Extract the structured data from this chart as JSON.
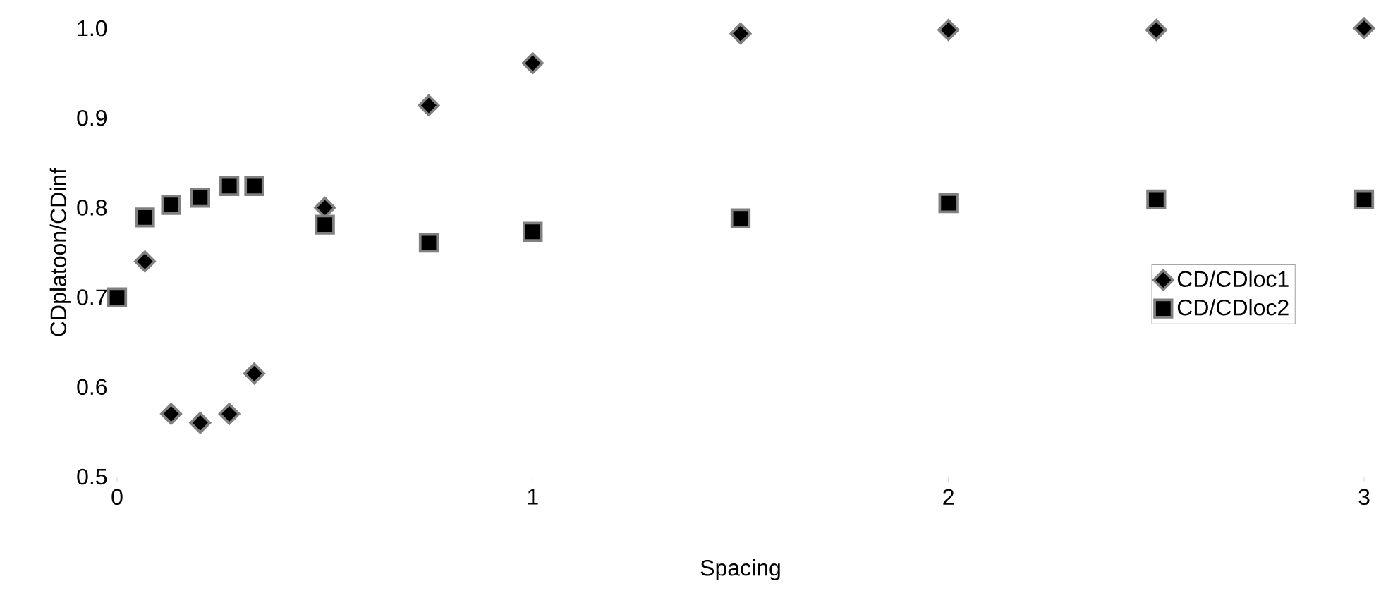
{
  "chart_data": {
    "type": "scatter",
    "xlabel": "Spacing",
    "ylabel": "CDplatoon/CDinf",
    "xlim": [
      0,
      3
    ],
    "ylim": [
      0.5,
      1.0
    ],
    "xticks": [
      0,
      1,
      2,
      3
    ],
    "yticks": [
      {
        "value": 0.5,
        "label": "0.5"
      },
      {
        "value": 0.6,
        "label": "0.6"
      },
      {
        "value": 0.7,
        "label": "0.7"
      },
      {
        "value": 0.8,
        "label": "0.8"
      },
      {
        "value": 0.9,
        "label": "0.9"
      },
      {
        "value": 1.0,
        "label": "1.0"
      }
    ],
    "legend": "right",
    "series": [
      {
        "name": "CD/CDloc1",
        "color": "#000000",
        "marker": "diamond",
        "x": [
          0.067,
          0.13,
          0.2,
          0.27,
          0.33,
          0.5,
          0.75,
          1,
          1.5,
          2,
          2.5,
          3
        ],
        "values": [
          0.74,
          0.57,
          0.56,
          0.57,
          0.615,
          0.8,
          0.914,
          0.961,
          0.994,
          0.998,
          0.998,
          1.0
        ]
      },
      {
        "name": "CD/CDloc2",
        "color": "#000000",
        "marker": "square",
        "x": [
          0,
          0.067,
          0.13,
          0.2,
          0.27,
          0.33,
          0.5,
          0.75,
          1,
          1.5,
          2,
          2.5,
          3
        ],
        "values": [
          0.7,
          0.789,
          0.803,
          0.811,
          0.824,
          0.824,
          0.781,
          0.761,
          0.773,
          0.788,
          0.805,
          0.809,
          0.809
        ]
      }
    ]
  }
}
